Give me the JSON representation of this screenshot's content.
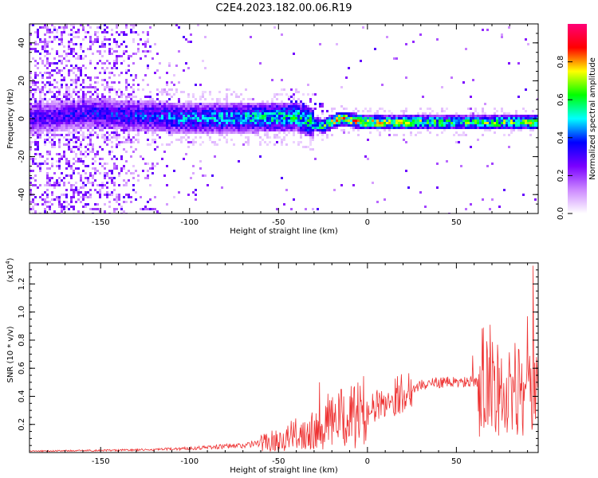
{
  "title": "C2E4.2023.182.00.06.R19",
  "chart_data": [
    {
      "type": "heatmap",
      "xlabel": "Height of straight line (km)",
      "ylabel": "Frequency (Hz)",
      "xlim": [
        -190,
        96
      ],
      "ylim": [
        -50,
        50
      ],
      "x_ticks": [
        -150,
        -100,
        -50,
        0,
        50
      ],
      "y_ticks": [
        -40,
        -20,
        0,
        20,
        40
      ],
      "colorbar": {
        "label": "Normalized spectral amplitude",
        "range": [
          0,
          1
        ],
        "ticks": [
          "0.0",
          "0.2",
          "0.4",
          "0.6",
          "0.8"
        ],
        "colors": [
          "#ffffff",
          "#cc88ff",
          "#7a00ff",
          "#0000ff",
          "#00ffff",
          "#00ff00",
          "#ffff00",
          "#ff0000",
          "#ff0077"
        ]
      },
      "ridge": [
        {
          "x": -190,
          "f": 0,
          "amp": 0.3
        },
        {
          "x": -155,
          "f": 3,
          "amp": 0.35
        },
        {
          "x": -100,
          "f": 0,
          "amp": 0.45
        },
        {
          "x": -40,
          "f": 1,
          "amp": 0.55
        },
        {
          "x": -25,
          "f": -4,
          "amp": 0.6
        },
        {
          "x": -15,
          "f": 0,
          "amp": 0.8
        },
        {
          "x": 0,
          "f": -2,
          "amp": 0.75
        },
        {
          "x": 50,
          "f": -2,
          "amp": 0.6
        },
        {
          "x": 96,
          "f": -2,
          "amp": 0.7
        }
      ]
    },
    {
      "type": "line",
      "xlabel": "Height of straight line (km)",
      "ylabel": "SNR (10 * v/v)",
      "multiplier_label": "(x10",
      "multiplier_exp": "4",
      "multiplier_close": ")",
      "xlim": [
        -190,
        96
      ],
      "ylim": [
        0,
        1.35
      ],
      "x_ticks": [
        -150,
        -100,
        -50,
        0,
        50
      ],
      "y_ticks": [
        0.2,
        0.4,
        0.6,
        0.8,
        1.0,
        1.2
      ],
      "y_tick_labels": [
        "0.2",
        "0.4",
        "0.6",
        "0.8",
        "1.0",
        "1.2"
      ],
      "color": "#ee3333",
      "envelope": {
        "x": [
          -190,
          -150,
          -120,
          -100,
          -70,
          -50,
          -35,
          -25,
          -10,
          0,
          10,
          20,
          30,
          40,
          50,
          60,
          65,
          75,
          85,
          90,
          96
        ],
        "y": [
          0.01,
          0.015,
          0.02,
          0.03,
          0.05,
          0.09,
          0.15,
          0.22,
          0.25,
          0.3,
          0.36,
          0.43,
          0.48,
          0.5,
          0.5,
          0.5,
          0.5,
          0.45,
          0.42,
          0.4,
          0.38
        ]
      },
      "peaks": [
        {
          "x": -27,
          "y": 0.5
        },
        {
          "x": 59,
          "y": 0.69
        },
        {
          "x": 69,
          "y": 0.91
        },
        {
          "x": 83,
          "y": 0.78
        },
        {
          "x": 90,
          "y": 0.97
        },
        {
          "x": 93,
          "y": 1.33
        },
        {
          "x": 95,
          "y": 0.68
        }
      ]
    }
  ]
}
